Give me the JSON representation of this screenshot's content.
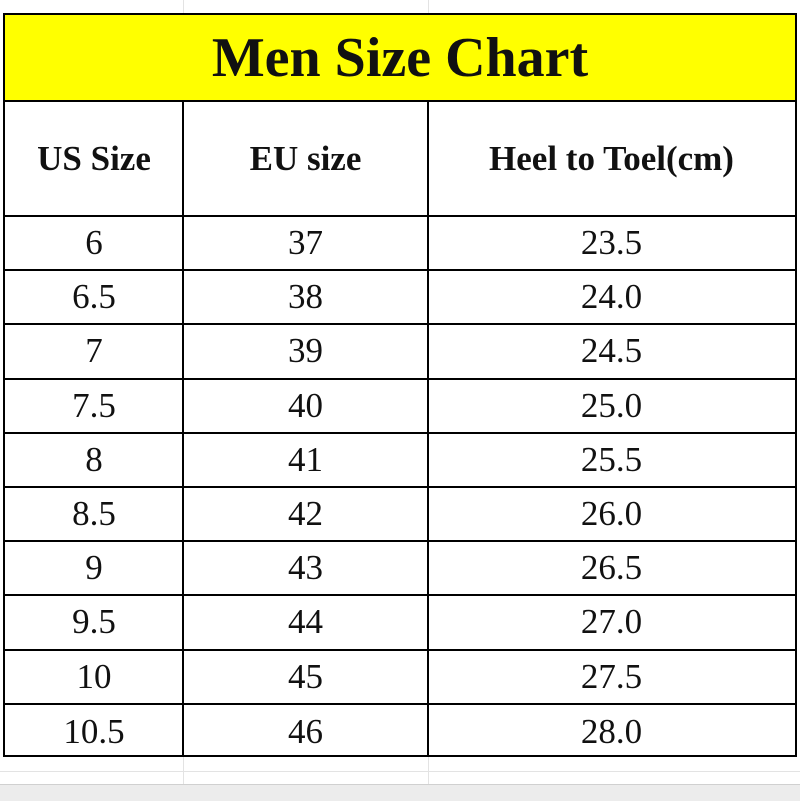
{
  "title": "Men Size Chart",
  "table": {
    "header": [
      "US Size",
      "EU size",
      "Heel to Toel(cm)"
    ],
    "rows": [
      [
        "6",
        "37",
        "23.5"
      ],
      [
        "6.5",
        "38",
        "24.0"
      ],
      [
        "7",
        "39",
        "24.5"
      ],
      [
        "7.5",
        "40",
        "25.0"
      ],
      [
        "8",
        "41",
        "25.5"
      ],
      [
        "8.5",
        "42",
        "26.0"
      ],
      [
        "9",
        "43",
        "26.5"
      ],
      [
        "9.5",
        "44",
        "27.0"
      ],
      [
        "10",
        "45",
        "27.5"
      ],
      [
        "10.5",
        "46",
        "28.0"
      ]
    ]
  }
}
